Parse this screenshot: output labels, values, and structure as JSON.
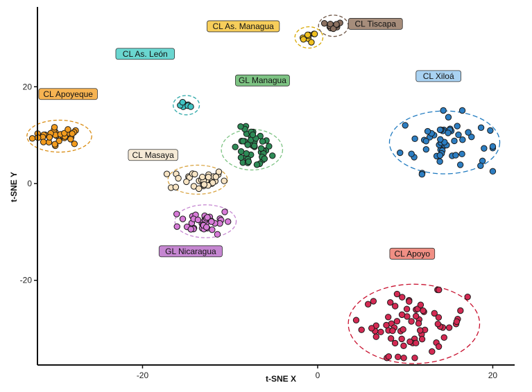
{
  "chart_data": {
    "type": "scatter",
    "title": "",
    "xlabel": "t-SNE X",
    "ylabel": "t-SNE Y",
    "xlim": [
      -32,
      22.5
    ],
    "ylim": [
      -37.5,
      36.5
    ],
    "x_ticks": [
      -20,
      0,
      20
    ],
    "y_ticks": [
      -20,
      0,
      20
    ],
    "grid": false,
    "legend": "none",
    "groups": [
      {
        "label": "CL Apoyeque",
        "cx": -29.5,
        "cy": 9.8,
        "sx": 1.5,
        "sy": 0.9,
        "n": 32,
        "fill": "#f39c1e",
        "label_x": -28.5,
        "label_y": 18.5,
        "label_fill": "#f6b352",
        "ring_color": "#d98c12",
        "ring_rx": 3.7,
        "ring_ry": 3.3,
        "ring_dash": "5,3"
      },
      {
        "label": "CL As. León",
        "cx": -15.0,
        "cy": 16.2,
        "sx": 0.35,
        "sy": 0.4,
        "n": 8,
        "fill": "#40c4c4",
        "label_x": -19.7,
        "label_y": 26.8,
        "label_fill": "#6ad6d0",
        "ring_color": "#2ea8a8",
        "ring_rx": 1.5,
        "ring_ry": 2.0,
        "ring_dash": "5,3"
      },
      {
        "label": "CL As. Managua",
        "cx": -1.0,
        "cy": 30.2,
        "sx": 0.4,
        "sy": 0.5,
        "n": 9,
        "fill": "#f0c020",
        "label_x": -8.5,
        "label_y": 32.5,
        "label_fill": "#f7ce5b",
        "ring_color": "#d8a800",
        "ring_rx": 1.6,
        "ring_ry": 2.2,
        "ring_dash": "5,3"
      },
      {
        "label": "CL Tiscapa",
        "cx": 1.8,
        "cy": 32.6,
        "sx": 0.5,
        "sy": 0.4,
        "n": 12,
        "fill": "#8a7060",
        "label_x": 6.6,
        "label_y": 33.0,
        "label_fill": "#a68d7b",
        "ring_color": "#6e5646",
        "ring_rx": 1.7,
        "ring_ry": 2.2,
        "ring_dash": "5,3"
      },
      {
        "label": "GL Managua",
        "cx": -7.5,
        "cy": 7.0,
        "sx": 1.1,
        "sy": 2.2,
        "n": 45,
        "fill": "#2e8b57",
        "label_x": -6.3,
        "label_y": 21.3,
        "label_fill": "#7dc383",
        "ring_color": "#7dc383",
        "ring_rx": 3.5,
        "ring_ry": 4.2,
        "ring_dash": "5,3"
      },
      {
        "label": "CL Masaya",
        "cx": -13.7,
        "cy": 0.8,
        "sx": 1.6,
        "sy": 1.1,
        "n": 34,
        "fill": "#f7e4c4",
        "label_x": -18.8,
        "label_y": 5.9,
        "label_fill": "#f6ead6",
        "ring_color": "#d9a441",
        "ring_rx": 3.4,
        "ring_ry": 3.0,
        "ring_dash": "5,3"
      },
      {
        "label": "GL Nicaragua",
        "cx": -12.8,
        "cy": -7.8,
        "sx": 1.5,
        "sy": 1.3,
        "n": 40,
        "fill": "#d77bd8",
        "label_x": -14.5,
        "label_y": -14.0,
        "label_fill": "#c586d1",
        "ring_color": "#c586d1",
        "ring_rx": 3.5,
        "ring_ry": 3.4,
        "ring_dash": "5,3"
      },
      {
        "label": "CL Xiloá",
        "cx": 14.5,
        "cy": 8.5,
        "sx": 2.5,
        "sy": 3.0,
        "n": 55,
        "fill": "#2d7ec2",
        "label_x": 13.8,
        "label_y": 22.2,
        "label_fill": "#a9d2f2",
        "ring_color": "#1f7ac0",
        "ring_rx": 6.3,
        "ring_ry": 6.5,
        "ring_dash": "7,4"
      },
      {
        "label": "CL Apoyo",
        "cx": 11.0,
        "cy": -29.0,
        "sx": 3.0,
        "sy": 3.2,
        "n": 70,
        "fill": "#d42a53",
        "label_x": 10.8,
        "label_y": -14.5,
        "label_fill": "#f08f84",
        "ring_color": "#c8102e",
        "ring_rx": 7.5,
        "ring_ry": 8.2,
        "ring_dash": "7,4"
      }
    ]
  }
}
